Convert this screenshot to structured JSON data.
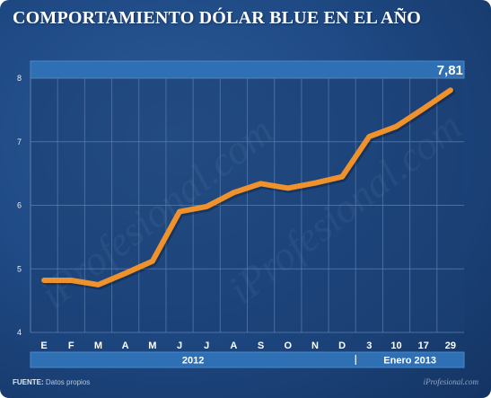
{
  "title": "COMPORTAMIENTO DÓLAR BLUE EN EL AÑO",
  "last_value_label": "7,81",
  "source": {
    "label": "FUENTE:",
    "text": "Datos propios"
  },
  "brand": "iProfesional.com",
  "watermark": "iProfesional.com",
  "colors": {
    "line": "#f0922b",
    "plot_bg": "#1c3f72",
    "band": "#2f6fb3",
    "grid": "#5a7fb0"
  },
  "chart_data": {
    "type": "line",
    "title": "COMPORTAMIENTO DÓLAR BLUE EN EL AÑO",
    "xlabel": "",
    "ylabel": "",
    "categories": [
      "E",
      "F",
      "M",
      "A",
      "M",
      "J",
      "J",
      "A",
      "S",
      "O",
      "N",
      "D",
      "3",
      "10",
      "17",
      "29"
    ],
    "groups": [
      {
        "label": "2012",
        "from": 0,
        "to": 11
      },
      {
        "label": "Enero 2013",
        "from": 12,
        "to": 15
      }
    ],
    "series": [
      {
        "values": [
          4.82,
          4.82,
          4.75,
          4.93,
          5.12,
          5.9,
          5.98,
          6.2,
          6.34,
          6.27,
          6.35,
          6.45,
          7.08,
          7.24,
          7.52,
          7.81
        ]
      }
    ],
    "ylim": [
      4,
      8
    ],
    "yticks": [
      4,
      5,
      6,
      7,
      8
    ],
    "grid": true,
    "legend": "none"
  }
}
